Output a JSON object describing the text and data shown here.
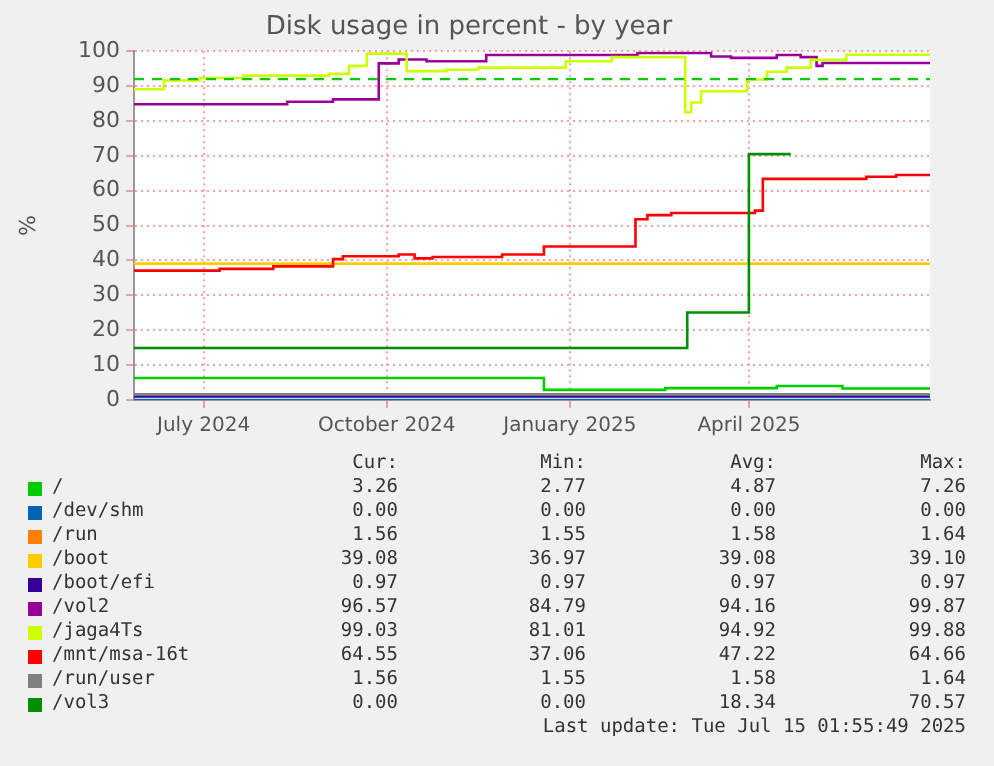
{
  "chart_data": {
    "type": "step",
    "title": "Disk usage in percent - by year",
    "ylabel": "%",
    "xlim": [
      "2024-06-10",
      "2025-07-15"
    ],
    "xticks": [
      {
        "value": "2024-07-15",
        "label": "July 2024"
      },
      {
        "value": "2024-10-15",
        "label": "October 2024"
      },
      {
        "value": "2025-01-15",
        "label": "January 2025"
      },
      {
        "value": "2025-04-15",
        "label": "April 2025"
      }
    ],
    "ylim": [
      0,
      100
    ],
    "yticks": [
      0,
      10,
      20,
      30,
      40,
      50,
      60,
      70,
      80,
      90,
      100
    ],
    "grid": true,
    "legend": "bottom",
    "ref_lines": [
      {
        "axis": "y",
        "value": 92,
        "color": "#00cc00",
        "line_style": "dashed"
      }
    ],
    "series": [
      {
        "name": "/",
        "color": "#00cc00",
        "x": [
          "2024-06-10",
          "2025-01-02",
          "2025-03-04",
          "2025-04-29",
          "2025-06-01",
          "2025-07-15"
        ],
        "values": [
          6.3,
          2.9,
          3.4,
          4.0,
          3.3,
          3.3
        ]
      },
      {
        "name": "/dev/shm",
        "color": "#0066b3",
        "x": [
          "2024-06-10",
          "2025-07-15"
        ],
        "values": [
          0,
          0
        ]
      },
      {
        "name": "/run",
        "color": "#ff8000"
      },
      {
        "name": "/boot",
        "color": "#ffcc00",
        "x": [
          "2024-06-10",
          "2025-07-15"
        ],
        "values": [
          39.1,
          39.1
        ]
      },
      {
        "name": "/boot/efi",
        "color": "#330099",
        "x": [
          "2024-06-10",
          "2025-07-15"
        ],
        "values": [
          1.0,
          1.0
        ]
      },
      {
        "name": "/vol2",
        "color": "#990099",
        "x": [
          "2024-06-10",
          "2024-08-26",
          "2024-09-18",
          "2024-10-11",
          "2024-10-21",
          "2024-11-04",
          "2024-12-04",
          "2025-02-18",
          "2025-03-27",
          "2025-04-06",
          "2025-04-29",
          "2025-05-11",
          "2025-05-19",
          "2025-05-22",
          "2025-07-15"
        ],
        "values": [
          84.8,
          85.5,
          86.2,
          96.5,
          97.6,
          97.1,
          98.9,
          99.5,
          98.5,
          98.1,
          98.9,
          98.3,
          95.8,
          96.6,
          96.6
        ]
      },
      {
        "name": "/jaga4Ts",
        "color": "#ccff00",
        "x": [
          "2024-06-10",
          "2024-06-25",
          "2024-07-13",
          "2024-08-04",
          "2024-09-16",
          "2024-09-26",
          "2024-10-05",
          "2024-10-25",
          "2024-11-14",
          "2024-11-30",
          "2025-01-13",
          "2025-02-05",
          "2025-03-14",
          "2025-03-17",
          "2025-03-22",
          "2025-04-14",
          "2025-04-24",
          "2025-05-04",
          "2025-05-16",
          "2025-06-03",
          "2025-07-15"
        ],
        "values": [
          89.1,
          91.6,
          92.3,
          93.0,
          93.5,
          95.8,
          99.3,
          94.3,
          94.7,
          95.3,
          97.1,
          98.3,
          82.5,
          85.3,
          88.5,
          91.9,
          94.1,
          95.3,
          97.5,
          99.0,
          99.0
        ]
      },
      {
        "name": "/mnt/msa-16t",
        "color": "#ff0000",
        "x": [
          "2024-06-10",
          "2024-07-23",
          "2024-08-19",
          "2024-09-18",
          "2024-09-23",
          "2024-10-21",
          "2024-10-29",
          "2024-11-07",
          "2024-12-12",
          "2025-01-02",
          "2025-02-17",
          "2025-02-23",
          "2025-03-07",
          "2025-04-18",
          "2025-04-22",
          "2025-06-13",
          "2025-06-28",
          "2025-07-15"
        ],
        "values": [
          37.1,
          37.6,
          38.3,
          40.4,
          41.2,
          41.7,
          40.6,
          41.0,
          41.7,
          44.0,
          51.8,
          53.0,
          53.6,
          54.3,
          63.4,
          64.0,
          64.5,
          64.5
        ]
      },
      {
        "name": "/run/user",
        "color": "#808080",
        "x": [
          "2024-06-10",
          "2025-07-15"
        ],
        "values": [
          1.6,
          1.6
        ]
      },
      {
        "name": "/vol3",
        "color": "#008f00",
        "x": [
          "2024-06-10",
          "2025-03-15",
          "2025-04-15",
          "2025-05-06"
        ],
        "values": [
          14.9,
          25.1,
          70.5,
          70.5
        ]
      }
    ],
    "annotations": [
      "Cur:",
      "Min:",
      "Avg:",
      "Max:",
      "3.26",
      "2.77",
      "4.87",
      "7.26",
      "0.00",
      "0.00",
      "0.00",
      "0.00",
      "1.56",
      "1.55",
      "1.58",
      "1.64",
      "39.08",
      "36.97",
      "39.08",
      "39.10",
      "0.97",
      "0.97",
      "0.97",
      "0.97",
      "96.57",
      "84.79",
      "94.16",
      "99.87",
      "99.03",
      "81.01",
      "94.92",
      "99.88",
      "64.55",
      "37.06",
      "47.22",
      "64.66",
      "1.56",
      "1.55",
      "1.58",
      "1.64",
      "0.00",
      "0.00",
      "18.34",
      "70.57",
      "Last update: Tue Jul 15 01:55:49 2025"
    ]
  }
}
